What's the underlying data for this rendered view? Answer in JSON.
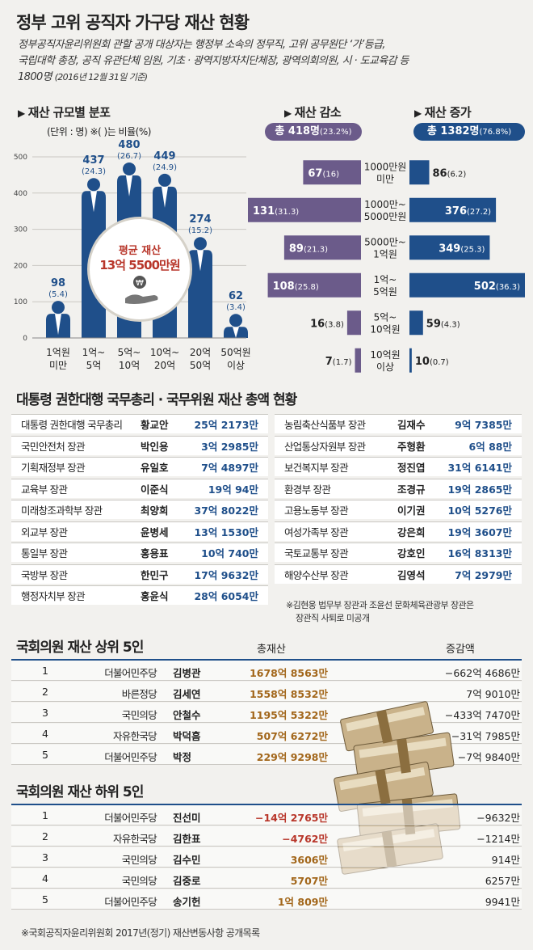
{
  "title": "정부 고위 공직자 가구당 재산 현황",
  "intro": {
    "line1": "정부공직자윤리위원회 관할 공개 대상자는 행정부 소속의 정무직, 고위 공무원단 ‘가’등급,",
    "line2": "국립대학 총장, 공직 유관단체 임원, 기초 · 광역지방자치단체장, 광역의회의원, 시 · 도교육감 등",
    "line3": "1800명",
    "date": "(2016년 12월 31일 기준)"
  },
  "colors": {
    "navy": "#1f4f8a",
    "purple": "#6b5b8a",
    "gold": "#a2661a",
    "red": "#b8362a"
  },
  "dist": {
    "heading": "재산 규모별 분포",
    "unit_note": "(단위 : 명)  ※(   )는 비율(%)",
    "badge_label": "평균 재산",
    "badge_value": "13억 5500만원",
    "badge_icon": "hand-coin-icon"
  },
  "decrease": {
    "heading": "재산 감소",
    "total": "총 418명",
    "pct": "(23.2%)"
  },
  "increase": {
    "heading": "재산 증가",
    "total": "총 1382명",
    "pct": "(76.8%)"
  },
  "chart_data": [
    {
      "type": "bar",
      "title": "재산 규모별 분포",
      "unit": "(단위 : 명)",
      "categories": [
        "1억원 미만",
        "1억~ 5억",
        "5억~ 10억",
        "10억~ 20억",
        "20억 50억",
        "50억원 이상"
      ],
      "cat_lines": [
        [
          "1억원",
          "미만"
        ],
        [
          "1억~",
          "5억"
        ],
        [
          "5억~",
          "10억"
        ],
        [
          "10억~",
          "20억"
        ],
        [
          "20억",
          "50억"
        ],
        [
          "50억원",
          "이상"
        ]
      ],
      "values": [
        98,
        437,
        480,
        449,
        274,
        62
      ],
      "pct": [
        "(5.4)",
        "(24.3)",
        "(26.7)",
        "(24.9)",
        "(15.2)",
        "(3.4)"
      ],
      "yticks": [
        0,
        100,
        200,
        300,
        400,
        500
      ],
      "ylim": [
        0,
        500
      ]
    },
    {
      "type": "bar",
      "title": "재산 감소 / 재산 증가",
      "orientation": "horizontal-diverging",
      "categories": [
        [
          "1000만원",
          "미만"
        ],
        [
          "1000만~",
          "5000만원"
        ],
        [
          "5000만~",
          "1억원"
        ],
        [
          "1억~",
          "5억원"
        ],
        [
          "5억~",
          "10억원"
        ],
        [
          "10억원",
          "이상"
        ]
      ],
      "series": [
        {
          "name": "재산 감소",
          "values": [
            67,
            131,
            89,
            108,
            16,
            7
          ],
          "pct": [
            "(16)",
            "(31.3)",
            "(21.3)",
            "(25.8)",
            "(3.8)",
            "(1.7)"
          ]
        },
        {
          "name": "재산 증가",
          "values": [
            86,
            376,
            349,
            502,
            59,
            10
          ],
          "pct": [
            "(6.2)",
            "(27.2)",
            "(25.3)",
            "(36.3)",
            "(4.3)",
            "(0.7)"
          ]
        }
      ]
    }
  ],
  "ministers": {
    "heading": "대통령 권한대행 국무총리 · 국무위원 재산 총액 현황",
    "left": [
      {
        "role": "대통령 권한대행 국무총리",
        "name": "황교안",
        "amount": "25억 2173만"
      },
      {
        "role": "국민안전처 장관",
        "name": "박인용",
        "amount": "3억 2985만"
      },
      {
        "role": "기획재정부 장관",
        "name": "유일호",
        "amount": "7억 4897만"
      },
      {
        "role": "교육부 장관",
        "name": "이준식",
        "amount": "19억 94만"
      },
      {
        "role": "미래창조과학부 장관",
        "name": "최양희",
        "amount": "37억 8022만"
      },
      {
        "role": "외교부 장관",
        "name": "윤병세",
        "amount": "13억 1530만"
      },
      {
        "role": "통일부 장관",
        "name": "홍용표",
        "amount": "10억 740만"
      },
      {
        "role": "국방부 장관",
        "name": "한민구",
        "amount": "17억 9632만"
      },
      {
        "role": "행정자치부 장관",
        "name": "홍윤식",
        "amount": "28억 6054만"
      }
    ],
    "right": [
      {
        "role": "농림축산식품부 장관",
        "name": "김재수",
        "amount": "9억 7385만"
      },
      {
        "role": "산업통상자원부 장관",
        "name": "주형환",
        "amount": "6억 88만"
      },
      {
        "role": "보건복지부 장관",
        "name": "정진엽",
        "amount": "31억 6141만"
      },
      {
        "role": "환경부 장관",
        "name": "조경규",
        "amount": "19억 2865만"
      },
      {
        "role": "고용노동부 장관",
        "name": "이기권",
        "amount": "10억 5276만"
      },
      {
        "role": "여성가족부 장관",
        "name": "강은희",
        "amount": "19억 3607만"
      },
      {
        "role": "국토교통부 장관",
        "name": "강호인",
        "amount": "16억 8313만"
      },
      {
        "role": "해양수산부 장관",
        "name": "김영석",
        "amount": "7억 2979만"
      }
    ],
    "note1": "※김현웅 법무부 장관과 조윤선 문화체육관광부 장관은",
    "note2": "장관직 사퇴로 미공개"
  },
  "top5": {
    "heading": "국회의원 재산 상위 5인",
    "col_total": "총재산",
    "col_change": "증감액",
    "rows": [
      {
        "rank": "1",
        "party": "더불어민주당",
        "name": "김병관",
        "total": "1678억 8563만",
        "change": "−662억 4686만"
      },
      {
        "rank": "2",
        "party": "바른정당",
        "name": "김세연",
        "total": "1558억 8532만",
        "change": "7억 9010만"
      },
      {
        "rank": "3",
        "party": "국민의당",
        "name": "안철수",
        "total": "1195억 5322만",
        "change": "−433억 7470만"
      },
      {
        "rank": "4",
        "party": "자유한국당",
        "name": "박덕흠",
        "total": "507억 6272만",
        "change": "−31억 7985만"
      },
      {
        "rank": "5",
        "party": "더불어민주당",
        "name": "박정",
        "total": "229억 9298만",
        "change": "−7억 9840만"
      }
    ]
  },
  "bottom5": {
    "heading": "국회의원 재산 하위 5인",
    "rows": [
      {
        "rank": "1",
        "party": "더불어민주당",
        "name": "진선미",
        "total": "−14억 2765만",
        "change": "−9632만"
      },
      {
        "rank": "2",
        "party": "자유한국당",
        "name": "김한표",
        "total": "−4762만",
        "change": "−1214만"
      },
      {
        "rank": "3",
        "party": "국민의당",
        "name": "김수민",
        "total": "3606만",
        "change": "914만"
      },
      {
        "rank": "4",
        "party": "국민의당",
        "name": "김중로",
        "total": "5707만",
        "change": "6257만"
      },
      {
        "rank": "5",
        "party": "더불어민주당",
        "name": "송기헌",
        "total": "1억 809만",
        "change": "9941만"
      }
    ]
  },
  "source": "※국회공직자윤리위원회 2017년(정기) 재산변동사항 공개목록",
  "decor": {
    "money_icon": "money-stack-icon"
  }
}
